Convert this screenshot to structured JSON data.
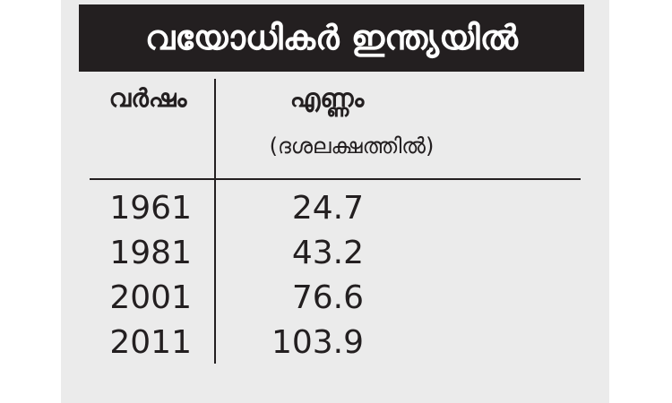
{
  "title": "വയോധികർ ഇന്ത്യയിൽ",
  "table": {
    "header": {
      "year": "വർഷം",
      "count": "എണ്ണം",
      "unit": "(ദശലക്ഷത്തിൽ)"
    },
    "rows": [
      [
        "1961",
        "24.7"
      ],
      [
        "1981",
        "43.2"
      ],
      [
        "2001",
        "76.6"
      ],
      [
        "2011",
        "103.9"
      ]
    ]
  }
}
